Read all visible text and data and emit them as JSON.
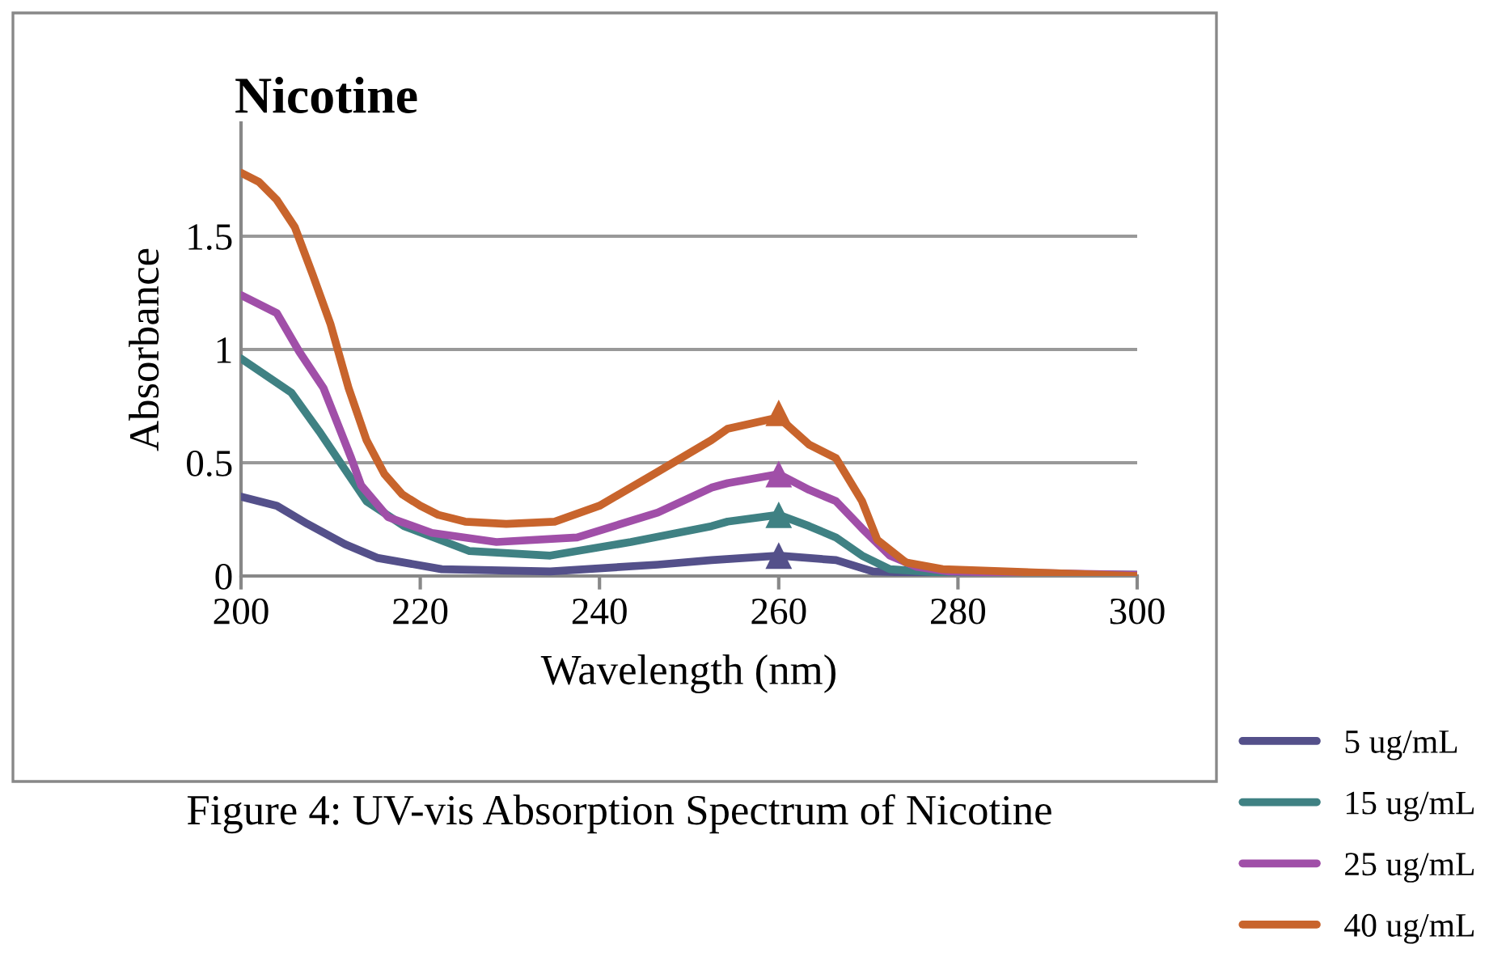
{
  "chart_data": {
    "type": "line",
    "title": "Nicotine",
    "xlabel": "Wavelength (nm)",
    "ylabel": "Absorbance",
    "xlim": [
      200,
      300
    ],
    "xticks": [
      200,
      220,
      240,
      260,
      280,
      300
    ],
    "ylim": [
      0,
      2
    ],
    "yticks": [
      0,
      0.5,
      1,
      1.5
    ],
    "grid": "y",
    "legend": "bottom right",
    "line_style": "solid",
    "marker": "none",
    "annotations": [
      "Figure 4: UV-vis Absorption Spectrum of Nicotine"
    ],
    "series": [
      {
        "name": "5 ug/mL",
        "color": "#54508a",
        "x": [
          200,
          204,
          207.4,
          211.6,
          215.2,
          222.4,
          234.5,
          246.5,
          252.5,
          260,
          266.4,
          270.5,
          280,
          300
        ],
        "values": [
          0.35,
          0.31,
          0.23,
          0.14,
          0.08,
          0.03,
          0.02,
          0.05,
          0.07,
          0.09,
          0.07,
          0.02,
          0.01,
          0.005
        ]
      },
      {
        "name": "15 ug/mL",
        "color": "#3f8183",
        "x": [
          200,
          205.6,
          208.7,
          211.6,
          214,
          218.2,
          225.5,
          234.5,
          243.5,
          252.5,
          254.3,
          260,
          263.4,
          266.4,
          269.3,
          272.4,
          280,
          300
        ],
        "values": [
          0.96,
          0.81,
          0.64,
          0.47,
          0.33,
          0.22,
          0.11,
          0.09,
          0.15,
          0.22,
          0.24,
          0.27,
          0.22,
          0.17,
          0.09,
          0.03,
          0.01,
          0.005
        ]
      },
      {
        "name": "25 ug/mL",
        "color": "#a04fa8",
        "x": [
          200,
          204,
          206.5,
          209.2,
          212.3,
          213.4,
          216.4,
          221.3,
          228.5,
          237.5,
          246.5,
          252.5,
          254.3,
          260,
          263.4,
          266.4,
          269.3,
          272.4,
          275.4,
          279,
          300
        ],
        "values": [
          1.24,
          1.16,
          0.99,
          0.83,
          0.52,
          0.4,
          0.26,
          0.19,
          0.15,
          0.17,
          0.28,
          0.39,
          0.41,
          0.45,
          0.38,
          0.33,
          0.21,
          0.09,
          0.04,
          0.02,
          0.005
        ]
      },
      {
        "name": "40 ug/mL",
        "color": "#c8642c",
        "x": [
          200,
          202,
          204,
          206,
          208,
          210,
          212,
          214,
          216,
          218,
          220,
          222,
          225,
          229.6,
          235,
          240,
          246.5,
          252.5,
          254.3,
          260,
          263.4,
          266.4,
          269.3,
          271,
          274.2,
          278.3,
          300
        ],
        "values": [
          1.78,
          1.74,
          1.66,
          1.54,
          1.33,
          1.11,
          0.83,
          0.6,
          0.45,
          0.36,
          0.31,
          0.27,
          0.24,
          0.23,
          0.24,
          0.31,
          0.46,
          0.6,
          0.65,
          0.7,
          0.58,
          0.52,
          0.33,
          0.16,
          0.06,
          0.03,
          0.0
        ]
      },
      {
        "type": "scatter",
        "marker": "triangle",
        "x": [
          260,
          260,
          260,
          260
        ],
        "values": [
          0.09,
          0.27,
          0.45,
          0.72
        ],
        "colors": [
          "#54508a",
          "#3f8183",
          "#a04fa8",
          "#c8642c"
        ]
      }
    ]
  }
}
